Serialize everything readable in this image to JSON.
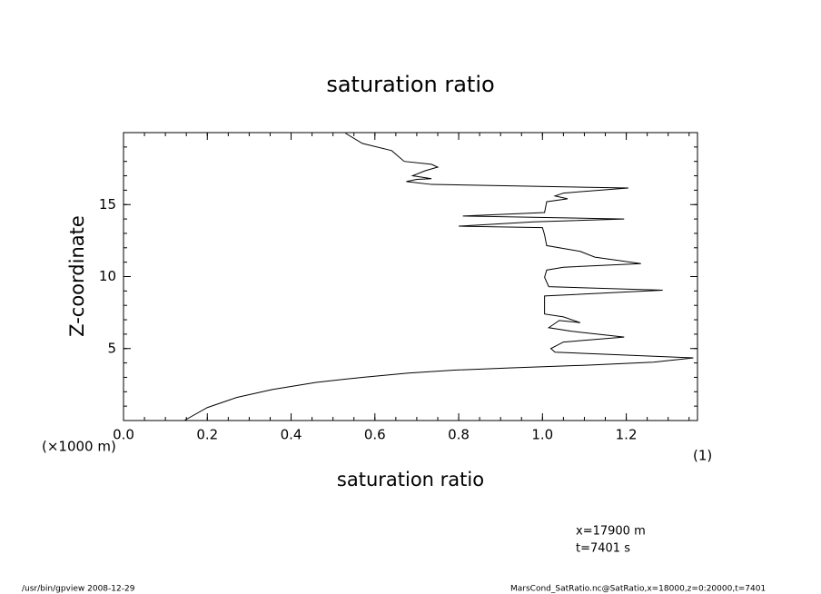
{
  "chart_data": {
    "type": "line",
    "title": "saturation ratio",
    "x_label": "saturation ratio",
    "y_label": "Z-coordinate",
    "y_unit": "(×1000 m)",
    "x_unit": "(1)",
    "annotations": [
      "x=17900  m",
      "t=7401  s"
    ],
    "footer_left": "/usr/bin/gpview   2008-12-29",
    "footer_right": "MarsCond_SatRatio.nc@SatRatio,x=18000,z=0:20000,t=7401",
    "xlim": [
      0,
      1.37
    ],
    "ylim": [
      0,
      20
    ],
    "xticks": [
      {
        "value": 0,
        "label": "0.0"
      },
      0.2,
      0.4,
      0.6,
      0.8,
      {
        "value": 1,
        "label": "1.0"
      },
      1.2
    ],
    "yticks": [
      5,
      10,
      15
    ],
    "color": "#000000",
    "series": [
      {
        "x": [
          0.145,
          0.2,
          0.27,
          0.355,
          0.46,
          0.57,
          0.68,
          0.79,
          0.92,
          1.11,
          1.265,
          1.36,
          1.03,
          1.02,
          1.05,
          1.195,
          1.07,
          1.015,
          1.04,
          1.09,
          1.05,
          1.005,
          1.005,
          1.005,
          1.287,
          1.015,
          1.005,
          1.01,
          1.05,
          1.235,
          1.125,
          1.09,
          1.01,
          1.005,
          1.0,
          0.8,
          0.98,
          1.195,
          0.81,
          1.005,
          1.01,
          1.06,
          1.03,
          1.05,
          1.205,
          0.735,
          0.675,
          0.7,
          0.735,
          0.69,
          0.72,
          0.75,
          0.735,
          0.67,
          0.64,
          0.57,
          0.53
        ],
        "y": [
          0,
          0.9,
          1.6,
          2.15,
          2.65,
          3.0,
          3.3,
          3.5,
          3.65,
          3.85,
          4.05,
          4.35,
          4.75,
          5.0,
          5.45,
          5.8,
          6.2,
          6.45,
          6.95,
          6.8,
          7.2,
          7.4,
          8.35,
          8.65,
          9.05,
          9.3,
          9.95,
          10.45,
          10.65,
          10.9,
          11.35,
          11.75,
          12.15,
          12.9,
          13.4,
          13.5,
          13.8,
          14.0,
          14.2,
          14.45,
          15.2,
          15.4,
          15.6,
          15.8,
          16.15,
          16.4,
          16.6,
          16.75,
          16.8,
          17.0,
          17.35,
          17.6,
          17.8,
          18.0,
          18.75,
          19.25,
          19.95
        ]
      }
    ]
  }
}
